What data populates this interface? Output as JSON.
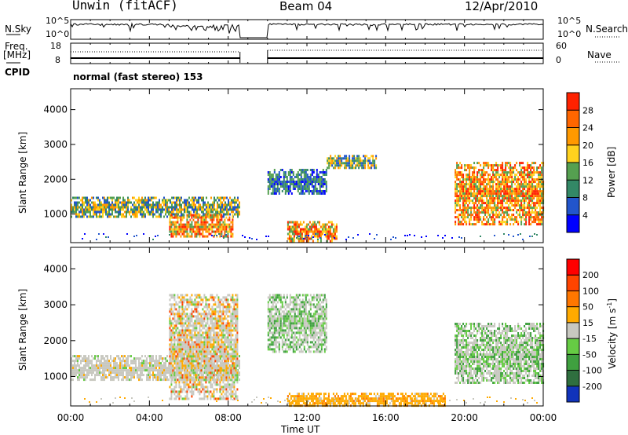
{
  "header": {
    "station": "Unwin (fitACF)",
    "beam": "Beam 04",
    "date": "12/Apr/2010"
  },
  "strip": {
    "nsky_label": "N.Sky",
    "freq_label": "Freq.",
    "freq_unit": "[MHz]",
    "cpid_label": "CPID",
    "nsearch_label": "N.Search",
    "nave_label": "Nave",
    "nsky_ticks": [
      "10^5",
      "10^0"
    ],
    "nsearch_ticks": [
      "10^5",
      "10^0"
    ],
    "freq_ticks": [
      "18",
      "8"
    ],
    "nave_ticks": [
      "60",
      "0"
    ],
    "cpid_text": "normal (fast stereo) 153"
  },
  "chart_data": [
    {
      "type": "heatmap",
      "name": "power-panel",
      "ylabel": "Slant Range [km]",
      "xlabel": "",
      "ylim": [
        180,
        4600
      ],
      "yticks": [
        1000,
        2000,
        3000,
        4000
      ],
      "xlim": [
        0,
        24
      ],
      "data_gap_hours": [
        8.6,
        10.0
      ],
      "colorbar": {
        "label": "Power [dB]",
        "ticks": [
          "4",
          "8",
          "12",
          "16",
          "20",
          "24",
          "28"
        ],
        "colors": [
          "#0000ff",
          "#2255cc",
          "#338866",
          "#55a050",
          "#ffd21e",
          "#ff9900",
          "#ff6600",
          "#ff2200"
        ]
      },
      "features": [
        {
          "t0": 0.0,
          "t1": 8.6,
          "range": [
            900,
            1500
          ],
          "level": "medium"
        },
        {
          "t0": 5.0,
          "t1": 8.2,
          "range": [
            350,
            1000
          ],
          "level": "high"
        },
        {
          "t0": 10.0,
          "t1": 13.0,
          "range": [
            1600,
            2300
          ],
          "level": "low"
        },
        {
          "t0": 11.0,
          "t1": 13.5,
          "range": [
            250,
            800
          ],
          "level": "high"
        },
        {
          "t0": 13.0,
          "t1": 15.5,
          "range": [
            2300,
            2700
          ],
          "level": "medium"
        },
        {
          "t0": 19.5,
          "t1": 24.0,
          "range": [
            700,
            2500
          ],
          "level": "high"
        }
      ]
    },
    {
      "type": "heatmap",
      "name": "velocity-panel",
      "ylabel": "Slant Range [km]",
      "xlabel": "Time UT",
      "ylim": [
        180,
        4600
      ],
      "yticks": [
        1000,
        2000,
        3000,
        4000
      ],
      "xlim": [
        0,
        24
      ],
      "xticks": [
        "00:00",
        "04:00",
        "08:00",
        "12:00",
        "16:00",
        "20:00",
        "00:00"
      ],
      "data_gap_hours": [
        8.6,
        10.0
      ],
      "colorbar": {
        "label": "Velocity [m s",
        "label_sup": "-1",
        "label_end": "]",
        "ticks": [
          "200",
          "100",
          "50",
          "15",
          "-15",
          "-50",
          "-100",
          "-200"
        ],
        "colors": [
          "#1133bb",
          "#2f6f3f",
          "#3fa03f",
          "#66cc44",
          "#c8c8c0",
          "#ffaa00",
          "#ff7700",
          "#ff4400",
          "#ff0000"
        ]
      },
      "features": [
        {
          "t0": 0.0,
          "t1": 8.6,
          "range": [
            900,
            1600
          ],
          "level": "neutral"
        },
        {
          "t0": 5.0,
          "t1": 8.5,
          "range": [
            400,
            3300
          ],
          "level": "mixed"
        },
        {
          "t0": 10.0,
          "t1": 13.0,
          "range": [
            1700,
            3300
          ],
          "level": "green"
        },
        {
          "t0": 11.0,
          "t1": 19.0,
          "range": [
            200,
            550
          ],
          "level": "orange"
        },
        {
          "t0": 19.5,
          "t1": 24.0,
          "range": [
            800,
            2500
          ],
          "level": "green"
        }
      ]
    }
  ]
}
